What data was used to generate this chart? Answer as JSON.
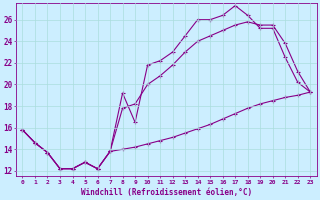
{
  "title": "",
  "xlabel": "Windchill (Refroidissement éolien,°C)",
  "ylabel": "",
  "bg_color": "#cceeff",
  "line_color": "#880088",
  "grid_color": "#aadddd",
  "xlim": [
    -0.5,
    23.5
  ],
  "ylim": [
    11.5,
    27.5
  ],
  "xticks": [
    0,
    1,
    2,
    3,
    4,
    5,
    6,
    7,
    8,
    9,
    10,
    11,
    12,
    13,
    14,
    15,
    16,
    17,
    18,
    19,
    20,
    21,
    22,
    23
  ],
  "yticks": [
    12,
    14,
    16,
    18,
    20,
    22,
    24,
    26
  ],
  "line1_x": [
    0,
    1,
    2,
    3,
    4,
    5,
    6,
    7,
    8,
    9,
    10,
    11,
    12,
    13,
    14,
    15,
    16,
    17,
    18,
    19,
    20,
    21,
    22,
    23
  ],
  "line1_y": [
    15.8,
    14.6,
    13.7,
    12.2,
    12.2,
    12.8,
    12.2,
    13.8,
    19.2,
    16.5,
    21.8,
    22.2,
    23.0,
    24.5,
    26.0,
    26.0,
    26.4,
    27.3,
    26.4,
    25.2,
    25.2,
    22.5,
    20.2,
    19.3
  ],
  "line2_x": [
    0,
    1,
    2,
    3,
    4,
    5,
    6,
    7,
    8,
    9,
    10,
    11,
    12,
    13,
    14,
    15,
    16,
    17,
    18,
    19,
    20,
    21,
    22,
    23
  ],
  "line2_y": [
    15.8,
    14.6,
    13.7,
    12.2,
    12.2,
    12.8,
    12.2,
    13.8,
    17.8,
    18.2,
    20.0,
    20.8,
    21.8,
    23.0,
    24.0,
    24.5,
    25.0,
    25.5,
    25.8,
    25.5,
    25.5,
    23.8,
    21.2,
    19.3
  ],
  "line3_x": [
    0,
    1,
    2,
    3,
    4,
    5,
    6,
    7,
    8,
    9,
    10,
    11,
    12,
    13,
    14,
    15,
    16,
    17,
    18,
    19,
    20,
    21,
    22,
    23
  ],
  "line3_y": [
    15.8,
    14.6,
    13.7,
    12.2,
    12.2,
    12.8,
    12.2,
    13.8,
    14.0,
    14.2,
    14.5,
    14.8,
    15.1,
    15.5,
    15.9,
    16.3,
    16.8,
    17.3,
    17.8,
    18.2,
    18.5,
    18.8,
    19.0,
    19.3
  ]
}
